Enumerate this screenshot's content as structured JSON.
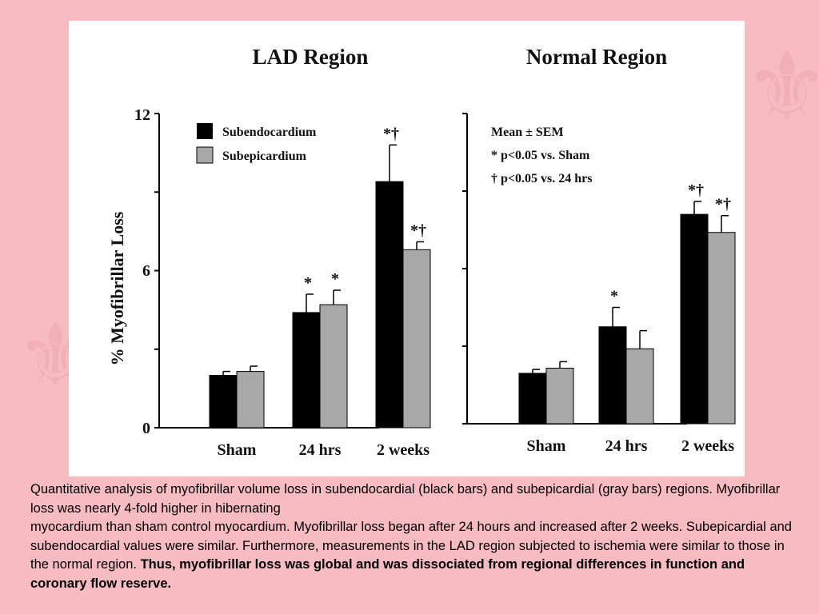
{
  "caption": {
    "line1": "Quantitative analysis of myofibrillar volume loss in subendocardial (black bars) and subepicardial (gray bars) regions. Myofibrillar loss was nearly 4-fold higher in hibernating",
    "line2": "myocardium than sham control myocardium. Myofibrillar loss began after 24 hours and increased after 2 weeks. Subepicardial and subendocardial values were similar. Furthermore, measurements in the LAD region subjected to ischemia were similar to those in the normal region. ",
    "bold": "Thus, myofibrillar loss was global and was dissociated from regional differences in function and coronary flow reserve."
  },
  "colors": {
    "background": "#f6bcc2",
    "subendocardium": "#000000",
    "subepicardium": "#a8a8a8"
  },
  "chart_data": [
    {
      "type": "bar",
      "title": "LAD Region",
      "ylabel": "% Myofibrillar Loss",
      "ylim": [
        0,
        12
      ],
      "yticks": [
        "0",
        "6",
        "12"
      ],
      "categories": [
        "Sham",
        "24 hrs",
        "2 weeks"
      ],
      "legend": {
        "position": "top-left",
        "entries": [
          "Subendocardium",
          "Subepicardium"
        ]
      },
      "series": [
        {
          "name": "Subendocardium",
          "values": [
            2.0,
            4.4,
            9.4
          ],
          "errors": [
            0.15,
            0.7,
            1.4
          ],
          "markers": [
            "",
            "*",
            "*†"
          ]
        },
        {
          "name": "Subepicardium",
          "values": [
            2.15,
            4.7,
            6.8
          ],
          "errors": [
            0.2,
            0.55,
            0.3
          ],
          "markers": [
            "",
            "*",
            "*†"
          ]
        }
      ]
    },
    {
      "type": "bar",
      "title": "Normal Region",
      "ylim": [
        0,
        12
      ],
      "categories": [
        "Sham",
        "24 hrs",
        "2 weeks"
      ],
      "notes": [
        "Mean ± SEM",
        "* p<0.05 vs. Sham",
        "† p<0.05 vs. 24 hrs"
      ],
      "series": [
        {
          "name": "Subendocardium",
          "values": [
            1.95,
            3.75,
            8.1
          ],
          "errors": [
            0.15,
            0.75,
            0.5
          ],
          "markers": [
            "",
            "*",
            "*†"
          ]
        },
        {
          "name": "Subepicardium",
          "values": [
            2.15,
            2.9,
            7.4
          ],
          "errors": [
            0.25,
            0.7,
            0.65
          ],
          "markers": [
            "",
            "",
            "*†"
          ]
        }
      ]
    }
  ]
}
